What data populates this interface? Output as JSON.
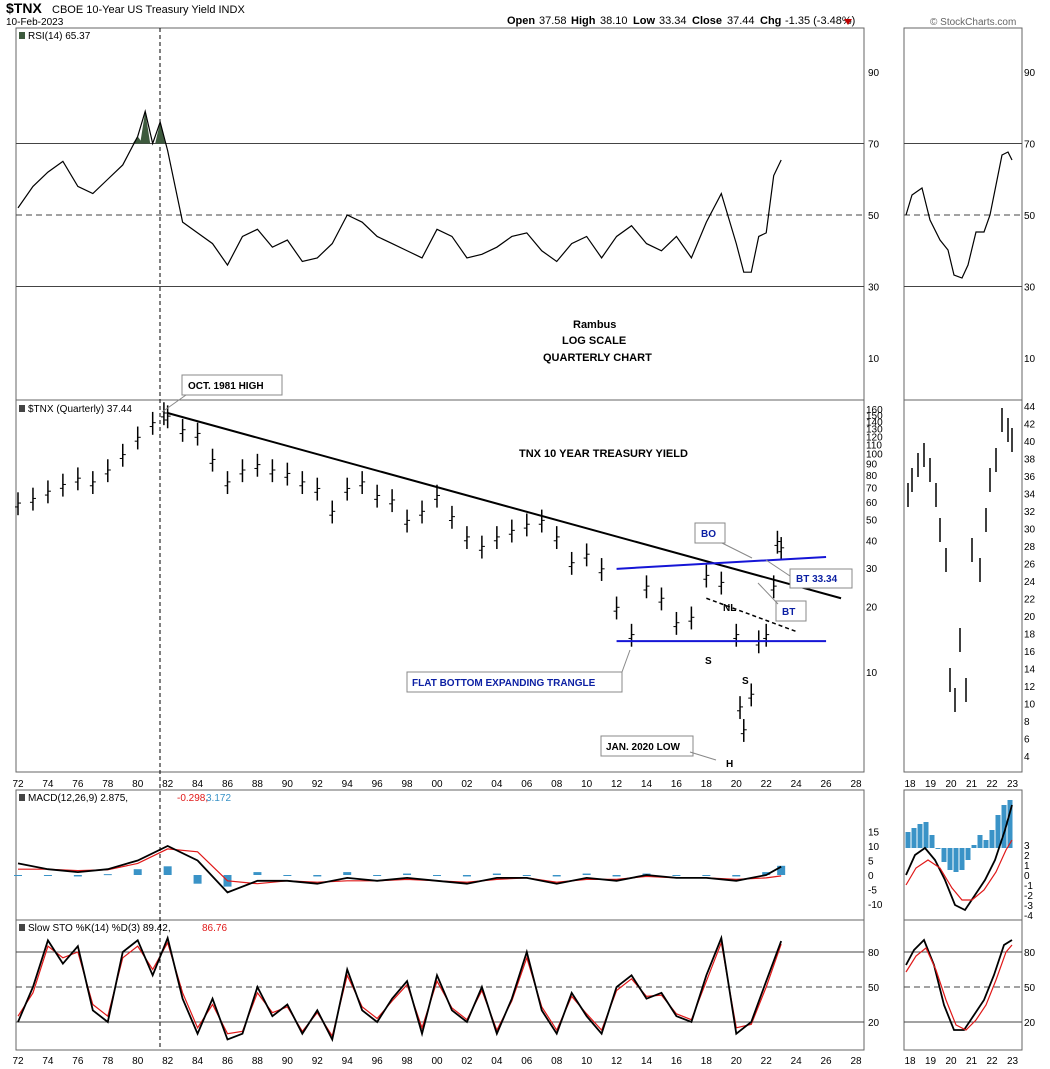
{
  "header": {
    "symbol": "$TNX",
    "name": "CBOE 10-Year US Treasury Yield INDX",
    "date": "10-Feb-2023",
    "open_label": "Open",
    "open": "37.58",
    "high_label": "High",
    "high": "38.10",
    "low_label": "Low",
    "low": "33.34",
    "close_label": "Close",
    "close": "37.44",
    "chg_label": "Chg",
    "chg": "-1.35 (-3.48%)",
    "watermark": "© StockCharts.com"
  },
  "colors": {
    "price": "#000000",
    "trendline": "#000000",
    "channel": "#1515d6",
    "rsi_fill": "#3d5a3d",
    "macd_hist": "#3a93c7",
    "signal": "#e01818",
    "grid": "#444444",
    "annotation_text_blue": "#0b1fa3"
  },
  "chart_data": [
    {
      "id": "rsi",
      "type": "line",
      "label": "RSI(14) 65.37",
      "yticks": [
        10,
        30,
        50,
        70,
        90
      ],
      "ylim": [
        0,
        100
      ],
      "reference_lines": [
        30,
        50,
        70
      ],
      "x": [
        72,
        73,
        74,
        75,
        76,
        77,
        78,
        79,
        80,
        80.5,
        81,
        81.5,
        82,
        83,
        84,
        85,
        86,
        87,
        88,
        89,
        90,
        91,
        92,
        93,
        94,
        95,
        96,
        97,
        98,
        99,
        100,
        101,
        102,
        103,
        104,
        105,
        106,
        107,
        108,
        109,
        110,
        111,
        112,
        113,
        114,
        115,
        116,
        117,
        118,
        119,
        120,
        120.5,
        121,
        121.5,
        122,
        122.5,
        123
      ],
      "values": [
        52,
        58,
        62,
        65,
        58,
        56,
        60,
        64,
        72,
        79,
        70,
        76,
        68,
        48,
        45,
        42,
        36,
        44,
        46,
        41,
        43,
        37,
        38,
        42,
        50,
        48,
        44,
        42,
        40,
        38,
        46,
        44,
        38,
        39,
        41,
        44,
        45,
        40,
        37,
        42,
        44,
        38,
        44,
        47,
        42,
        40,
        44,
        38,
        48,
        56,
        42,
        34,
        34,
        44,
        45,
        61,
        65.37
      ]
    },
    {
      "id": "price",
      "type": "ohlc",
      "label": "$TNX (Quarterly) 37.44",
      "scale": "log",
      "yticks": [
        4,
        6,
        8,
        10,
        12,
        14,
        16,
        18,
        20,
        22,
        24,
        26,
        28,
        30,
        32,
        34,
        36,
        38,
        40,
        42,
        44,
        50,
        60,
        70,
        80,
        90,
        100,
        110,
        120,
        130,
        140,
        150,
        160
      ],
      "xticks": [
        "72",
        "74",
        "76",
        "78",
        "80",
        "82",
        "84",
        "86",
        "88",
        "90",
        "92",
        "94",
        "96",
        "98",
        "00",
        "02",
        "04",
        "06",
        "08",
        "10",
        "12",
        "14",
        "16",
        "18",
        "20",
        "22",
        "24",
        "26",
        "28"
      ],
      "inset_xticks": [
        "18",
        "19",
        "20",
        "21",
        "22",
        "23"
      ],
      "x": [
        72,
        73,
        74,
        75,
        76,
        77,
        78,
        79,
        80,
        81,
        81.75,
        82,
        83,
        84,
        85,
        86,
        87,
        88,
        89,
        90,
        91,
        92,
        93,
        94,
        95,
        96,
        97,
        98,
        99,
        100,
        101,
        102,
        103,
        104,
        105,
        106,
        107,
        108,
        109,
        110,
        111,
        112,
        113,
        114,
        115,
        116,
        117,
        118,
        119,
        120,
        120.25,
        120.5,
        121,
        121.5,
        122,
        122.5,
        122.75,
        123
      ],
      "values": [
        60,
        63,
        68,
        73,
        78,
        75,
        85,
        100,
        120,
        140,
        155,
        150,
        130,
        125,
        95,
        75,
        85,
        90,
        85,
        82,
        75,
        70,
        55,
        70,
        75,
        65,
        62,
        50,
        55,
        65,
        52,
        42,
        38,
        42,
        45,
        48,
        50,
        42,
        32,
        35,
        30,
        20,
        15,
        25,
        22,
        17,
        18,
        28,
        26,
        15,
        7,
        5.5,
        8,
        14,
        15,
        25,
        40,
        37.44
      ]
    },
    {
      "id": "macd",
      "type": "line",
      "label_main": "MACD(12,26,9) 2.875,",
      "label_signal": "-0.298,",
      "label_hist": "3.172",
      "yticks": [
        -10,
        -5,
        0,
        5,
        10,
        15
      ],
      "inset_yticks": [
        -4,
        -3,
        -2,
        -1,
        0,
        1,
        2,
        3
      ],
      "x": [
        72,
        74,
        76,
        78,
        80,
        82,
        84,
        86,
        88,
        90,
        92,
        94,
        96,
        98,
        100,
        102,
        104,
        106,
        108,
        110,
        112,
        114,
        116,
        118,
        120,
        122,
        123
      ],
      "series": [
        {
          "name": "MACD",
          "values": [
            4,
            2,
            1,
            2,
            5,
            10,
            5,
            -6,
            -2,
            -2,
            -3,
            -1,
            -2,
            -1,
            -2,
            -3,
            -1,
            -1,
            -3,
            -1,
            -2,
            0,
            -1,
            -1,
            -2,
            0,
            2.875
          ]
        },
        {
          "name": "Signal",
          "values": [
            2,
            2,
            1.5,
            1.8,
            4,
            9,
            8,
            -2,
            -3,
            -2,
            -2.5,
            -2,
            -2,
            -1.5,
            -2,
            -2.5,
            -1.5,
            -1,
            -2.5,
            -1.5,
            -1.5,
            -0.5,
            -1,
            -1,
            -1.5,
            -1,
            -0.298
          ]
        },
        {
          "name": "Histogram",
          "values": [
            0,
            0,
            -0.5,
            0.3,
            2,
            3,
            -3,
            -4,
            1,
            0,
            -0.5,
            1,
            0,
            0.5,
            0,
            -0.5,
            0.5,
            0,
            -0.5,
            0.5,
            -0.5,
            0.5,
            0,
            0,
            -0.5,
            1,
            3.172
          ]
        }
      ]
    },
    {
      "id": "slowsto",
      "type": "line",
      "label_main": "Slow STO %K(14) %D(3) 89.42,",
      "label_signal": "86.76",
      "yticks": [
        20,
        50,
        80
      ],
      "reference_lines": [
        20,
        50,
        80
      ],
      "x": [
        72,
        73,
        74,
        75,
        76,
        77,
        78,
        79,
        80,
        81,
        82,
        83,
        84,
        85,
        86,
        87,
        88,
        89,
        90,
        91,
        92,
        93,
        94,
        95,
        96,
        97,
        98,
        99,
        100,
        101,
        102,
        103,
        104,
        105,
        106,
        107,
        108,
        109,
        110,
        111,
        112,
        113,
        114,
        115,
        116,
        117,
        118,
        119,
        120,
        121,
        122,
        123
      ],
      "series": [
        {
          "name": "%K",
          "values": [
            20,
            50,
            90,
            70,
            85,
            30,
            20,
            80,
            90,
            60,
            92,
            40,
            10,
            40,
            5,
            10,
            50,
            25,
            35,
            10,
            30,
            5,
            65,
            30,
            20,
            40,
            55,
            10,
            60,
            30,
            20,
            50,
            10,
            40,
            80,
            30,
            10,
            45,
            25,
            10,
            50,
            60,
            40,
            45,
            25,
            20,
            60,
            92,
            10,
            20,
            55,
            89.42
          ]
        },
        {
          "name": "%D",
          "values": [
            25,
            45,
            85,
            75,
            80,
            35,
            25,
            75,
            85,
            65,
            88,
            45,
            15,
            35,
            10,
            12,
            45,
            28,
            33,
            12,
            28,
            8,
            60,
            33,
            23,
            38,
            52,
            15,
            55,
            32,
            22,
            47,
            13,
            38,
            75,
            33,
            13,
            42,
            27,
            13,
            47,
            57,
            42,
            43,
            27,
            22,
            55,
            88,
            15,
            18,
            50,
            86.76
          ]
        }
      ]
    }
  ],
  "annotations": {
    "oct1981": "OCT. 1981 HIGH",
    "rambus": "Rambus",
    "logscale": "LOG SCALE",
    "quarterly": "QUARTERLY CHART",
    "tnx_title": "TNX 10 YEAR TREASURY YIELD",
    "bo": "BO",
    "bt_value": "BT 33.34",
    "bt": "BT",
    "nl": "NL",
    "s1": "S",
    "s2": "S",
    "h": "H",
    "flat_bottom": "FLAT BOTTOM EXPANDING TRANGLE",
    "jan2020": "JAN. 2020 LOW"
  }
}
